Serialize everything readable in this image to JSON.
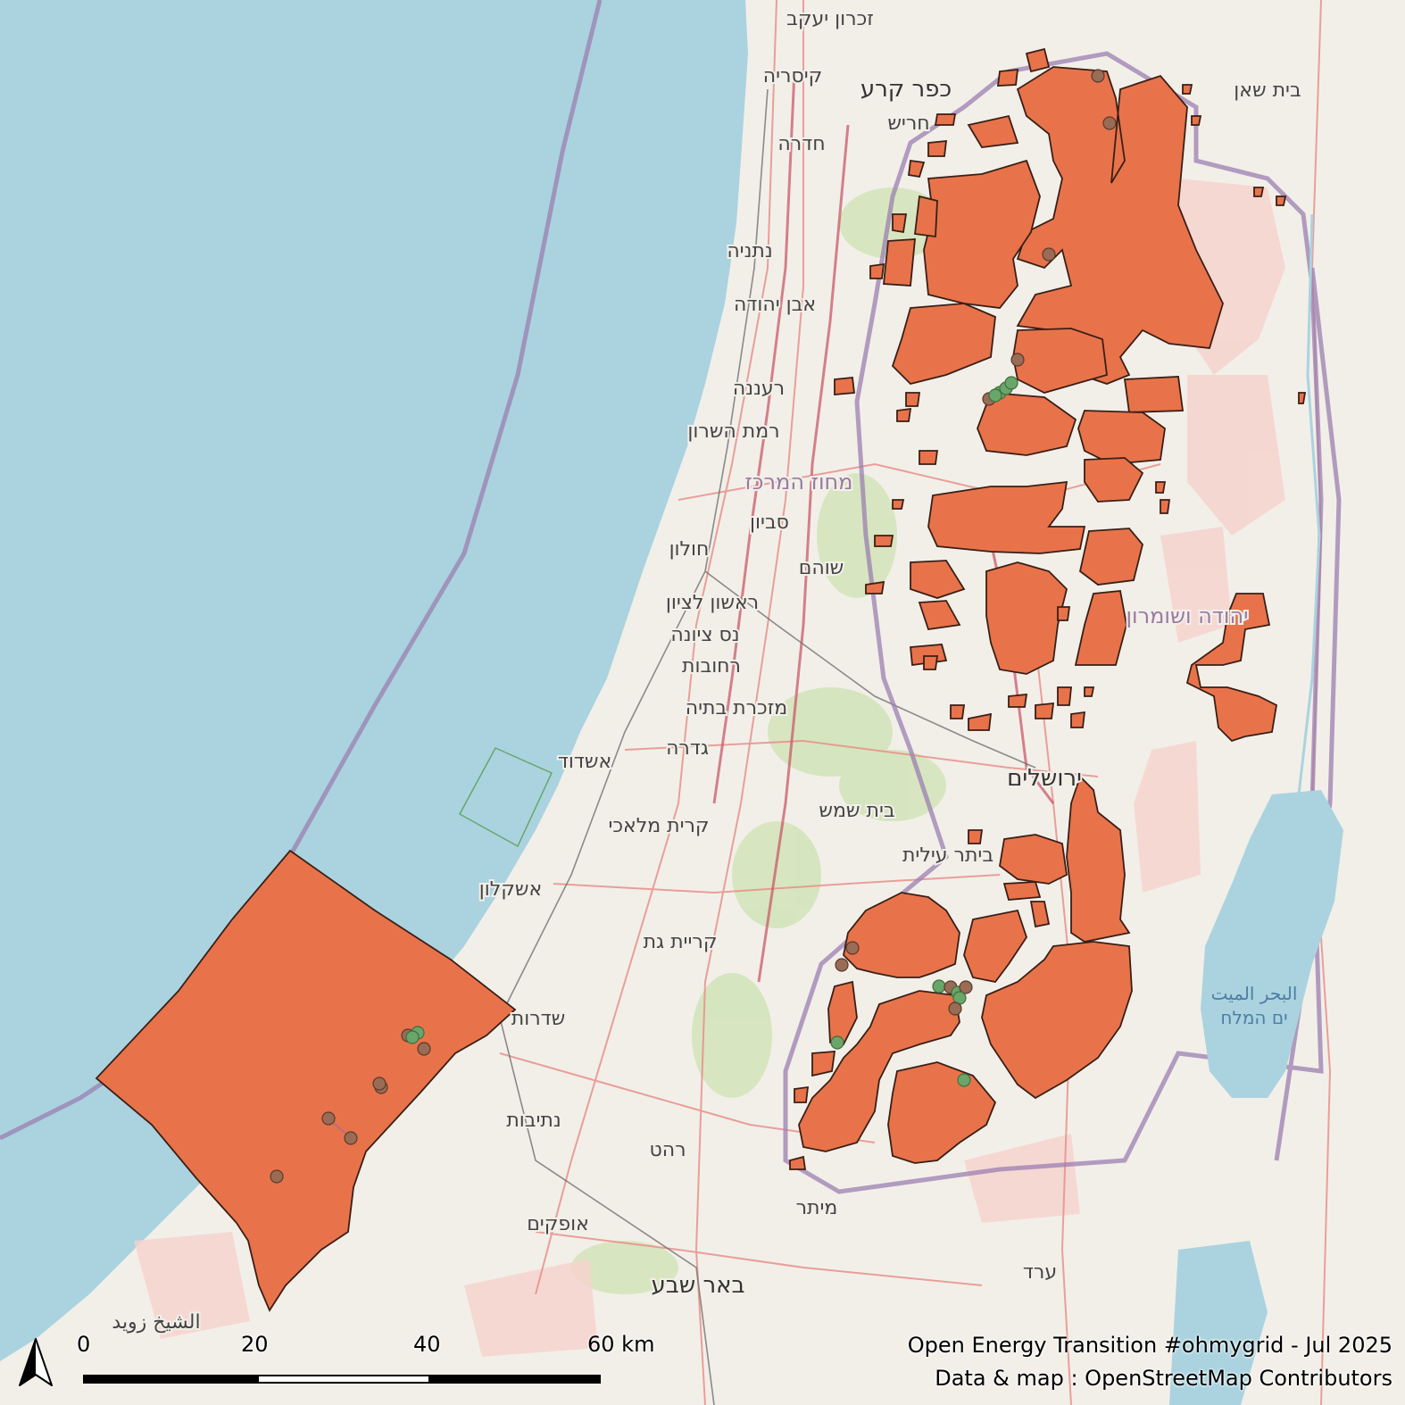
{
  "credits": {
    "line1": "Open Energy Transition #ohmygrid - Jul 2025",
    "line2": "Data & map : OpenStreetMap Contributors"
  },
  "scale_bar": {
    "labels": [
      "0",
      "20",
      "40",
      "60 km"
    ]
  },
  "places": [
    {
      "name": "זכרון יעקב"
    },
    {
      "name": "קיסריה"
    },
    {
      "name": "כפר קרע"
    },
    {
      "name": "חריש"
    },
    {
      "name": "חדרה"
    },
    {
      "name": "בית שאן"
    },
    {
      "name": "נתניה"
    },
    {
      "name": "אבן יהודה"
    },
    {
      "name": "רעננה"
    },
    {
      "name": "רמת השרון"
    },
    {
      "name": "מחוז המרכז"
    },
    {
      "name": "סביון"
    },
    {
      "name": "חולון"
    },
    {
      "name": "שוהם"
    },
    {
      "name": "ראשון לציון"
    },
    {
      "name": "נס ציונה"
    },
    {
      "name": "רחובות"
    },
    {
      "name": "מזכרת בתיה"
    },
    {
      "name": "גדרה"
    },
    {
      "name": "אשדוד"
    },
    {
      "name": "ירושלים"
    },
    {
      "name": "בית שמש"
    },
    {
      "name": "קרית מלאכי"
    },
    {
      "name": "ביתר עילית"
    },
    {
      "name": "אשקלון"
    },
    {
      "name": "קריית גת"
    },
    {
      "name": "שדרות"
    },
    {
      "name": "נתיבות"
    },
    {
      "name": "רהט"
    },
    {
      "name": "אופקים"
    },
    {
      "name": "באר שבע"
    },
    {
      "name": "מיתר"
    },
    {
      "name": "ערד"
    },
    {
      "name": "יהודה ושומרון"
    },
    {
      "name": "البحر الميت"
    },
    {
      "name": "ים המלח"
    },
    {
      "name": "الشيخ زويد"
    }
  ],
  "colors": {
    "sea": "#aad3df",
    "land": "#f2efe9",
    "region_fill": "#e8734a",
    "region_stroke": "#3a1f16",
    "point_brown": "#9a6b55",
    "point_green": "#6aa56a"
  },
  "icons": {
    "north_arrow": "north-arrow-icon"
  }
}
